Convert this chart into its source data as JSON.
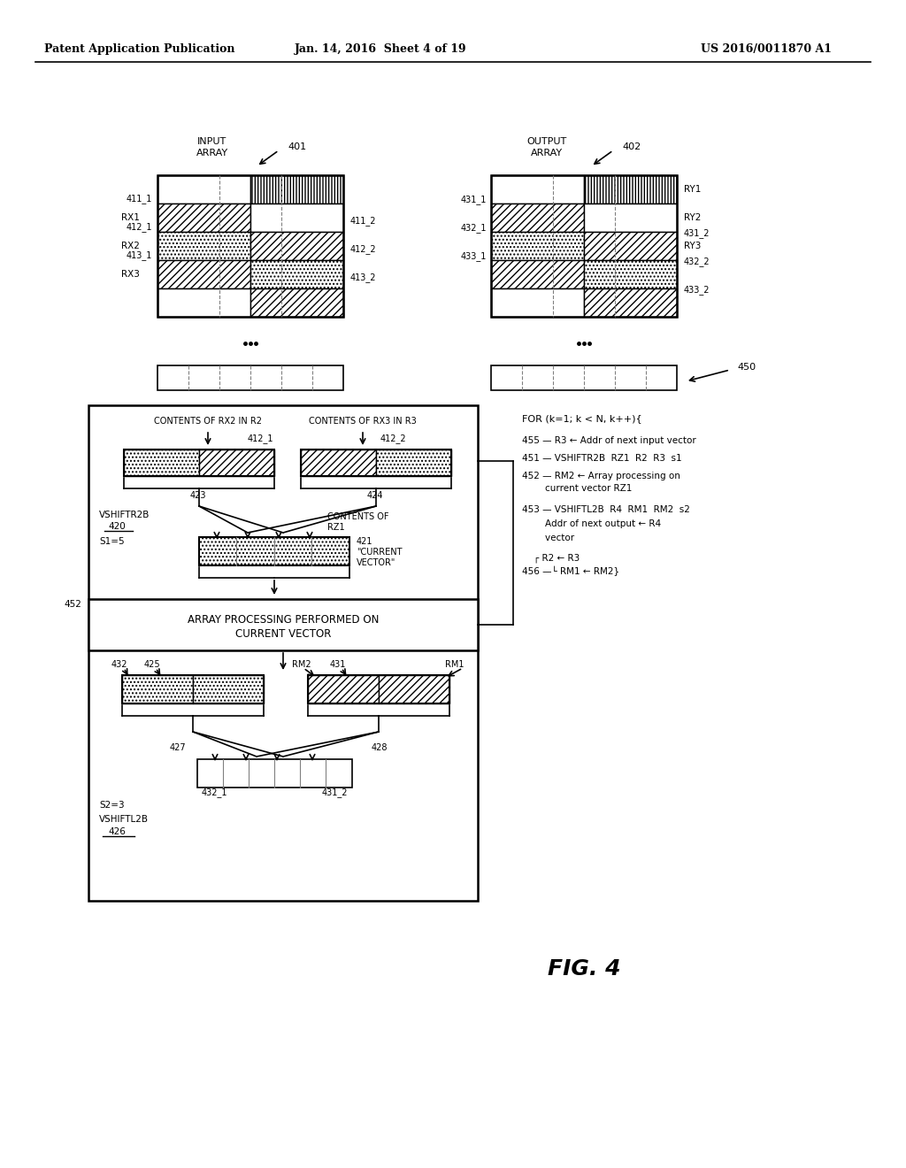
{
  "header_left": "Patent Application Publication",
  "header_mid": "Jan. 14, 2016  Sheet 4 of 19",
  "header_right": "US 2016/0011870 A1",
  "fig_label": "FIG. 4",
  "background": "#ffffff"
}
